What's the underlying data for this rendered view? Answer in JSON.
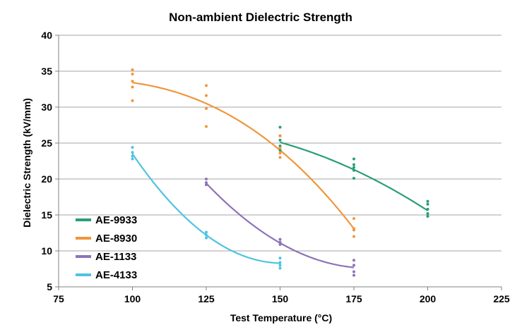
{
  "chart_data": {
    "type": "scatter",
    "title": "Non-ambient Dielectric Strength",
    "xlabel": "Test Temperature (°C)",
    "ylabel": "Dielectric Strength (kV/mm)",
    "xlim": [
      75,
      225
    ],
    "ylim": [
      5,
      40
    ],
    "xticks": [
      75,
      100,
      125,
      150,
      175,
      200,
      225
    ],
    "yticks": [
      5,
      10,
      15,
      20,
      25,
      30,
      35,
      40
    ],
    "xtick_labels": [
      "75",
      "100",
      "125",
      "150",
      "175",
      "200",
      "225"
    ],
    "ytick_labels": [
      "5",
      "10",
      "15",
      "20",
      "25",
      "30",
      "35",
      "40"
    ],
    "grid": "horizontal",
    "legend_position": "bottom-left",
    "series": [
      {
        "name": "AE-9933",
        "color": "#2a9d78",
        "points": [
          [
            150,
            27.2
          ],
          [
            150,
            26.0
          ],
          [
            150,
            25.4
          ],
          [
            150,
            24.6
          ],
          [
            150,
            24.0
          ],
          [
            175,
            22.8
          ],
          [
            175,
            22.0
          ],
          [
            175,
            21.6
          ],
          [
            175,
            21.2
          ],
          [
            175,
            20.1
          ],
          [
            200,
            16.9
          ],
          [
            200,
            16.5
          ],
          [
            200,
            15.8
          ],
          [
            200,
            15.2
          ],
          [
            200,
            14.8
          ]
        ],
        "curve": [
          [
            150,
            25.1
          ],
          [
            175,
            21.3
          ],
          [
            200,
            15.6
          ]
        ]
      },
      {
        "name": "AE-8930",
        "color": "#f0963c",
        "points": [
          [
            100,
            35.2
          ],
          [
            100,
            34.6
          ],
          [
            100,
            33.6
          ],
          [
            100,
            32.8
          ],
          [
            100,
            30.9
          ],
          [
            125,
            33.0
          ],
          [
            125,
            31.6
          ],
          [
            125,
            29.8
          ],
          [
            125,
            27.3
          ],
          [
            150,
            26.0
          ],
          [
            150,
            24.3
          ],
          [
            150,
            23.6
          ],
          [
            150,
            23.0
          ],
          [
            175,
            14.5
          ],
          [
            175,
            13.1
          ],
          [
            175,
            12.9
          ],
          [
            175,
            12.0
          ]
        ],
        "curve": [
          [
            100,
            33.4
          ],
          [
            125,
            30.5
          ],
          [
            150,
            24.0
          ],
          [
            175,
            13.1
          ]
        ]
      },
      {
        "name": "AE-1133",
        "color": "#8e72b8",
        "points": [
          [
            125,
            20.0
          ],
          [
            125,
            19.5
          ],
          [
            125,
            19.2
          ],
          [
            150,
            11.6
          ],
          [
            150,
            11.2
          ],
          [
            150,
            10.9
          ],
          [
            175,
            8.7
          ],
          [
            175,
            8.0
          ],
          [
            175,
            7.1
          ],
          [
            175,
            6.6
          ]
        ],
        "curve": [
          [
            125,
            19.4
          ],
          [
            150,
            11.1
          ],
          [
            175,
            7.7
          ]
        ]
      },
      {
        "name": "AE-4133",
        "color": "#4fc3e0",
        "points": [
          [
            100,
            24.4
          ],
          [
            100,
            23.7
          ],
          [
            100,
            23.2
          ],
          [
            100,
            22.8
          ],
          [
            125,
            12.6
          ],
          [
            125,
            12.2
          ],
          [
            125,
            11.8
          ],
          [
            150,
            9.0
          ],
          [
            150,
            8.4
          ],
          [
            150,
            8.0
          ],
          [
            150,
            7.6
          ]
        ],
        "curve": [
          [
            100,
            23.5
          ],
          [
            125,
            12.2
          ],
          [
            150,
            8.3
          ]
        ]
      }
    ]
  }
}
